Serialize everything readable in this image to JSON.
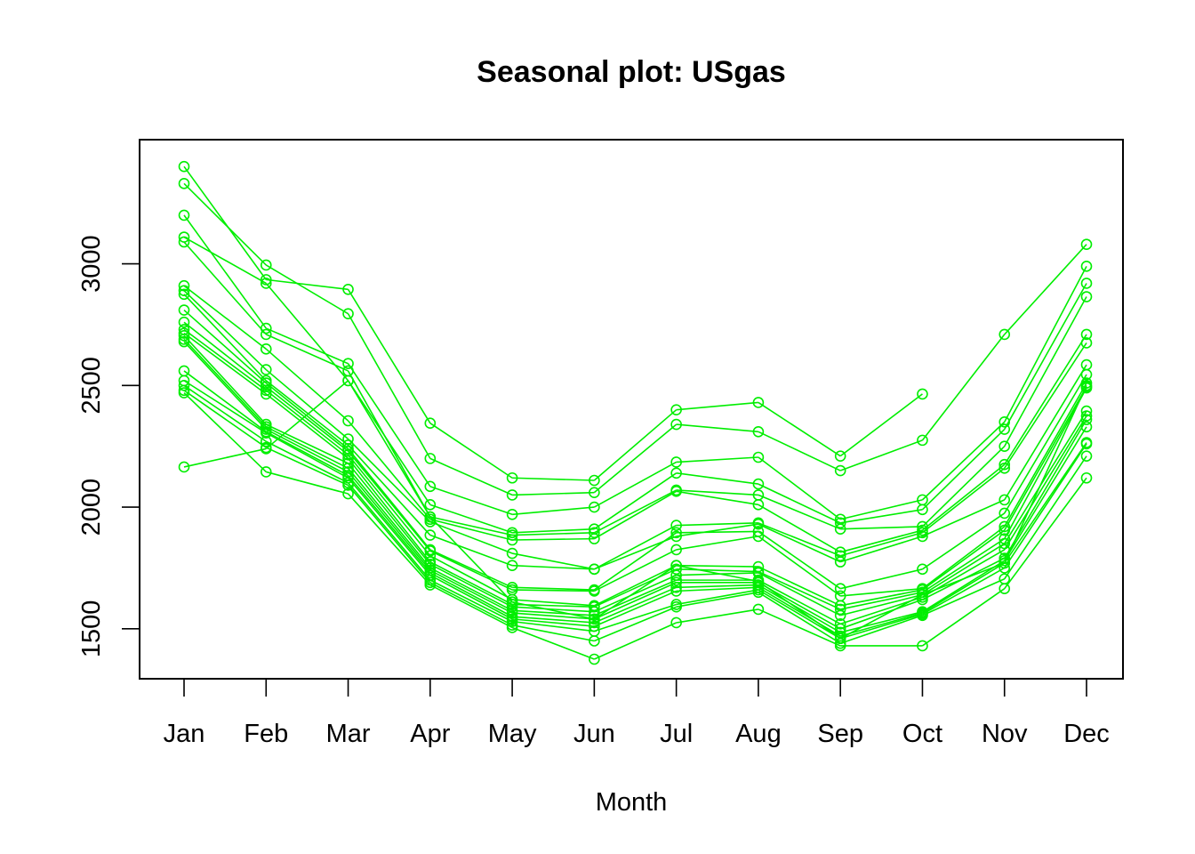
{
  "chart_data": {
    "type": "line",
    "title": "Seasonal plot: USgas",
    "xlabel": "Month",
    "ylabel": "",
    "categories": [
      "Jan",
      "Feb",
      "Mar",
      "Apr",
      "May",
      "Jun",
      "Jul",
      "Aug",
      "Sep",
      "Oct",
      "Nov",
      "Dec"
    ],
    "ylim": [
      1375,
      3430
    ],
    "yticks": [
      1500,
      2000,
      2500,
      3000
    ],
    "grid": false,
    "legend": "none",
    "line_color": "#00EE00",
    "series": [
      {
        "values": [
          3400,
          2935,
          2895,
          2345,
          2120,
          2110,
          2400,
          2430,
          2210,
          2465,
          null,
          null
        ]
      },
      {
        "values": [
          3330,
          2995,
          2795,
          2200,
          2050,
          2060,
          2340,
          2310,
          2150,
          2275,
          2710,
          3080
        ]
      },
      {
        "values": [
          3200,
          2735,
          2590,
          2085,
          1970,
          2000,
          2185,
          2205,
          1950,
          2030,
          2350,
          2990
        ]
      },
      {
        "values": [
          3110,
          2920,
          2520,
          2010,
          1895,
          1910,
          2140,
          2095,
          1935,
          1990,
          2320,
          2920
        ]
      },
      {
        "values": [
          3090,
          2710,
          2560,
          1960,
          1885,
          1895,
          2070,
          2050,
          1910,
          1920,
          2250,
          2865
        ]
      },
      {
        "values": [
          2910,
          2650,
          2355,
          1950,
          1865,
          1870,
          2065,
          2010,
          1815,
          1905,
          2175,
          2710
        ]
      },
      {
        "values": [
          2890,
          2565,
          2280,
          1940,
          1810,
          1745,
          1925,
          1935,
          1800,
          1895,
          2160,
          2675
        ]
      },
      {
        "values": [
          2875,
          2520,
          2255,
          1885,
          1760,
          1745,
          1880,
          1930,
          1775,
          1880,
          2030,
          2585
        ]
      },
      {
        "values": [
          2810,
          2510,
          2240,
          1825,
          1670,
          1660,
          1895,
          1900,
          1665,
          1745,
          1975,
          2545
        ]
      },
      {
        "values": [
          2760,
          2495,
          2230,
          1820,
          1660,
          1655,
          1825,
          1880,
          1635,
          1665,
          1920,
          2510
        ]
      },
      {
        "values": [
          2730,
          2480,
          2215,
          1800,
          1620,
          1595,
          1760,
          1755,
          1595,
          1660,
          1905,
          2495
        ]
      },
      {
        "values": [
          2715,
          2465,
          2200,
          1775,
          1600,
          1590,
          1745,
          1735,
          1580,
          1650,
          1870,
          2490
        ]
      },
      {
        "values": [
          2705,
          2340,
          2180,
          1765,
          1590,
          1570,
          1720,
          1730,
          1555,
          1640,
          1850,
          2395
        ]
      },
      {
        "values": [
          2690,
          2330,
          2160,
          1750,
          1575,
          1555,
          1700,
          1700,
          1520,
          1630,
          1825,
          2375
        ]
      },
      {
        "values": [
          2680,
          2320,
          2145,
          1740,
          1565,
          1540,
          1690,
          1690,
          1500,
          1620,
          1790,
          2360
        ]
      },
      {
        "values": [
          2560,
          2310,
          2130,
          1730,
          1550,
          1525,
          1670,
          1680,
          1485,
          1570,
          1780,
          2330
        ]
      },
      {
        "values": [
          2520,
          2305,
          2120,
          1720,
          1540,
          1510,
          1655,
          1670,
          1470,
          1565,
          1770,
          2265
        ]
      },
      {
        "values": [
          2500,
          2270,
          2100,
          1700,
          1530,
          1490,
          1600,
          1660,
          1460,
          1560,
          1750,
          2260
        ]
      },
      {
        "values": [
          2480,
          2245,
          2090,
          1690,
          1515,
          1450,
          1590,
          1650,
          1440,
          1555,
          1705,
          2210
        ]
      },
      {
        "values": [
          2470,
          2145,
          2055,
          1680,
          1505,
          1375,
          1525,
          1580,
          1430,
          1430,
          1665,
          2120
        ]
      },
      {
        "values": [
          2165,
          2240,
          2520,
          1960,
          1610,
          1540,
          1760,
          1695,
          1460,
          1640,
          1770,
          2500
        ]
      }
    ]
  }
}
